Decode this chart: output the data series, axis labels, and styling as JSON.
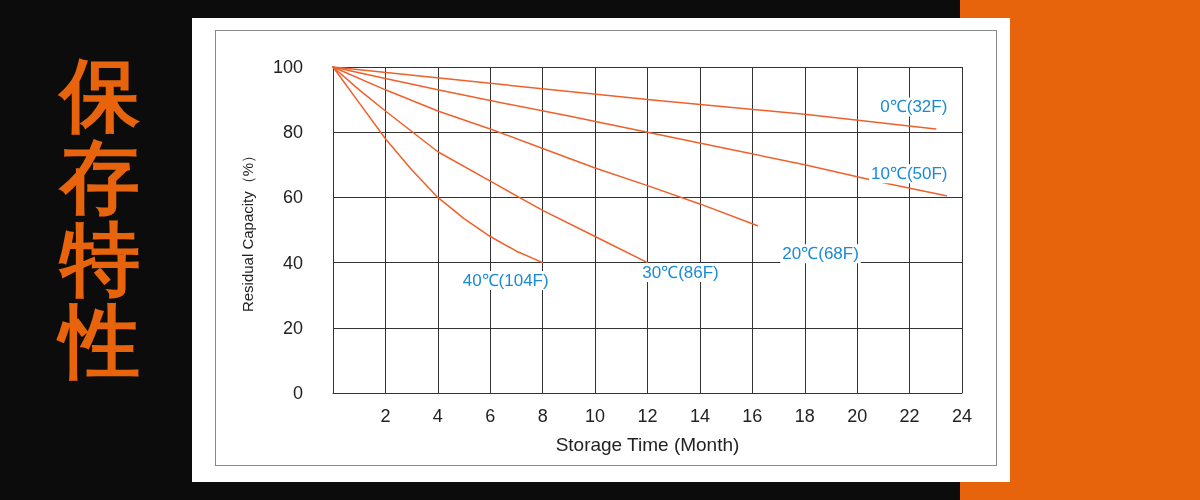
{
  "chart_data": {
    "type": "line",
    "title": "保存特性",
    "xlabel": "Storage Time (Month)",
    "ylabel": "Residual Capacity（%）",
    "xlim": [
      0,
      24
    ],
    "xticks": [
      2,
      4,
      6,
      8,
      10,
      12,
      14,
      16,
      18,
      20,
      22,
      24
    ],
    "ylim": [
      0,
      100
    ],
    "yticks": [
      0,
      20,
      40,
      60,
      80,
      100
    ],
    "grid": true,
    "legend": false,
    "marker": "none",
    "line_style": "solid",
    "series": [
      {
        "name": "0℃(32F)",
        "color": "#f0602a",
        "x": [
          0,
          6,
          12,
          18,
          23
        ],
        "values": [
          100,
          95,
          90,
          85.5,
          81
        ]
      },
      {
        "name": "10℃(50F)",
        "color": "#f0602a",
        "x": [
          0,
          2,
          4,
          6,
          9,
          12,
          15,
          18,
          21,
          23.4
        ],
        "values": [
          100,
          96.5,
          93,
          89.7,
          85,
          80,
          75,
          70,
          64.5,
          60.5
        ]
      },
      {
        "name": "20℃(68F)",
        "color": "#f0602a",
        "x": [
          0,
          2,
          4,
          6,
          8,
          10,
          12,
          14,
          16.2
        ],
        "values": [
          100,
          93,
          86.5,
          81,
          75,
          69,
          63.6,
          58,
          51.3
        ]
      },
      {
        "name": "30℃(86F)",
        "color": "#f0602a",
        "x": [
          0,
          1,
          2,
          4,
          6,
          8,
          10,
          12
        ],
        "values": [
          100,
          93,
          86.5,
          74,
          65,
          56,
          48,
          40
        ]
      },
      {
        "name": "40℃(104F)",
        "color": "#f0602a",
        "x": [
          0,
          1,
          2,
          3,
          4,
          5,
          6,
          7,
          8
        ],
        "values": [
          100,
          89,
          78,
          68.5,
          60,
          53.5,
          48,
          43.5,
          40
        ]
      }
    ]
  }
}
